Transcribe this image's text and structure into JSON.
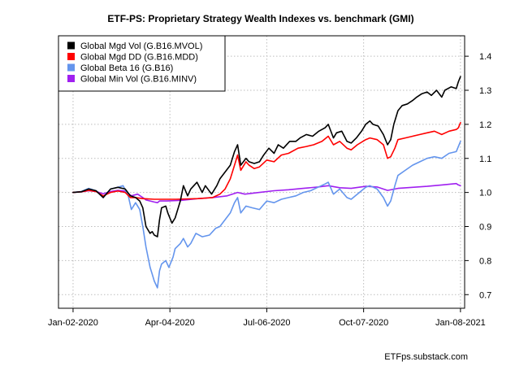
{
  "chart_data": {
    "type": "line",
    "title": "ETF-PS: Proprietary Strategy Wealth Indexes vs. benchmark (GMI)",
    "xlabel": "",
    "ylabel": "",
    "x_tick_labels": [
      "Jan-02-2020",
      "Apr-04-2020",
      "Jul-06-2020",
      "Oct-07-2020",
      "Jan-08-2021"
    ],
    "x_ticks": [
      "2020-01-02",
      "2020-04-04",
      "2020-07-06",
      "2020-10-07",
      "2021-01-08"
    ],
    "xlim": [
      "2019-12-19",
      "2021-01-12"
    ],
    "ylim": [
      0.66,
      1.46
    ],
    "y_ticks": [
      0.7,
      0.8,
      0.9,
      1.0,
      1.1,
      1.2,
      1.3,
      1.4
    ],
    "y_tick_labels": [
      "0.7",
      "0.8",
      "0.9",
      "1.0",
      "1.1",
      "1.2",
      "1.3",
      "1.4"
    ],
    "y_axis_side": "right",
    "grid": true,
    "legend_position": "top-left",
    "source_note": "ETFps.substack.com",
    "series": [
      {
        "name": "Global Mgd Vol (G.B16.MVOL)",
        "color": "#000000",
        "points": [
          [
            "2020-01-02",
            1.0
          ],
          [
            "2020-01-10",
            1.002
          ],
          [
            "2020-01-17",
            1.01
          ],
          [
            "2020-01-24",
            1.005
          ],
          [
            "2020-01-31",
            0.985
          ],
          [
            "2020-02-07",
            1.01
          ],
          [
            "2020-02-14",
            1.015
          ],
          [
            "2020-02-21",
            1.01
          ],
          [
            "2020-02-26",
            0.99
          ],
          [
            "2020-03-02",
            0.985
          ],
          [
            "2020-03-06",
            0.975
          ],
          [
            "2020-03-09",
            0.955
          ],
          [
            "2020-03-12",
            0.9
          ],
          [
            "2020-03-16",
            0.88
          ],
          [
            "2020-03-18",
            0.885
          ],
          [
            "2020-03-20",
            0.875
          ],
          [
            "2020-03-23",
            0.87
          ],
          [
            "2020-03-25",
            0.92
          ],
          [
            "2020-03-27",
            0.955
          ],
          [
            "2020-03-31",
            0.96
          ],
          [
            "2020-04-02",
            0.94
          ],
          [
            "2020-04-06",
            0.91
          ],
          [
            "2020-04-09",
            0.925
          ],
          [
            "2020-04-14",
            0.975
          ],
          [
            "2020-04-17",
            1.02
          ],
          [
            "2020-04-21",
            0.99
          ],
          [
            "2020-04-24",
            1.01
          ],
          [
            "2020-04-30",
            1.03
          ],
          [
            "2020-05-05",
            1.0
          ],
          [
            "2020-05-08",
            1.02
          ],
          [
            "2020-05-14",
            0.995
          ],
          [
            "2020-05-19",
            1.02
          ],
          [
            "2020-05-22",
            1.04
          ],
          [
            "2020-05-27",
            1.06
          ],
          [
            "2020-06-01",
            1.08
          ],
          [
            "2020-06-05",
            1.12
          ],
          [
            "2020-06-08",
            1.14
          ],
          [
            "2020-06-11",
            1.08
          ],
          [
            "2020-06-16",
            1.1
          ],
          [
            "2020-06-19",
            1.09
          ],
          [
            "2020-06-24",
            1.085
          ],
          [
            "2020-06-29",
            1.09
          ],
          [
            "2020-07-03",
            1.11
          ],
          [
            "2020-07-08",
            1.13
          ],
          [
            "2020-07-13",
            1.115
          ],
          [
            "2020-07-17",
            1.14
          ],
          [
            "2020-07-22",
            1.13
          ],
          [
            "2020-07-28",
            1.15
          ],
          [
            "2020-08-03",
            1.15
          ],
          [
            "2020-08-07",
            1.16
          ],
          [
            "2020-08-13",
            1.17
          ],
          [
            "2020-08-19",
            1.165
          ],
          [
            "2020-08-25",
            1.18
          ],
          [
            "2020-08-31",
            1.19
          ],
          [
            "2020-09-03",
            1.2
          ],
          [
            "2020-09-08",
            1.16
          ],
          [
            "2020-09-11",
            1.175
          ],
          [
            "2020-09-16",
            1.18
          ],
          [
            "2020-09-21",
            1.15
          ],
          [
            "2020-09-25",
            1.145
          ],
          [
            "2020-09-30",
            1.16
          ],
          [
            "2020-10-05",
            1.18
          ],
          [
            "2020-10-09",
            1.2
          ],
          [
            "2020-10-13",
            1.21
          ],
          [
            "2020-10-16",
            1.2
          ],
          [
            "2020-10-21",
            1.195
          ],
          [
            "2020-10-26",
            1.17
          ],
          [
            "2020-10-30",
            1.14
          ],
          [
            "2020-11-02",
            1.155
          ],
          [
            "2020-11-05",
            1.2
          ],
          [
            "2020-11-09",
            1.24
          ],
          [
            "2020-11-13",
            1.255
          ],
          [
            "2020-11-18",
            1.26
          ],
          [
            "2020-11-23",
            1.27
          ],
          [
            "2020-11-27",
            1.28
          ],
          [
            "2020-12-02",
            1.29
          ],
          [
            "2020-12-07",
            1.295
          ],
          [
            "2020-12-11",
            1.285
          ],
          [
            "2020-12-16",
            1.3
          ],
          [
            "2020-12-21",
            1.28
          ],
          [
            "2020-12-24",
            1.3
          ],
          [
            "2020-12-30",
            1.31
          ],
          [
            "2021-01-04",
            1.305
          ],
          [
            "2021-01-06",
            1.325
          ],
          [
            "2021-01-08",
            1.34
          ]
        ]
      },
      {
        "name": "Global Mgd DD (G.B16.MDD)",
        "color": "#ff0000",
        "points": [
          [
            "2020-01-02",
            1.0
          ],
          [
            "2020-01-10",
            1.002
          ],
          [
            "2020-01-17",
            1.006
          ],
          [
            "2020-01-24",
            1.003
          ],
          [
            "2020-01-31",
            0.99
          ],
          [
            "2020-02-07",
            1.0
          ],
          [
            "2020-02-14",
            1.004
          ],
          [
            "2020-02-21",
            1.0
          ],
          [
            "2020-02-26",
            0.985
          ],
          [
            "2020-03-02",
            0.985
          ],
          [
            "2020-03-09",
            0.982
          ],
          [
            "2020-03-20",
            0.98
          ],
          [
            "2020-04-10",
            0.98
          ],
          [
            "2020-05-01",
            0.982
          ],
          [
            "2020-05-15",
            0.985
          ],
          [
            "2020-05-22",
            0.995
          ],
          [
            "2020-05-27",
            1.01
          ],
          [
            "2020-06-01",
            1.04
          ],
          [
            "2020-06-05",
            1.08
          ],
          [
            "2020-06-08",
            1.11
          ],
          [
            "2020-06-11",
            1.065
          ],
          [
            "2020-06-16",
            1.09
          ],
          [
            "2020-06-19",
            1.08
          ],
          [
            "2020-06-24",
            1.07
          ],
          [
            "2020-06-29",
            1.075
          ],
          [
            "2020-07-06",
            1.095
          ],
          [
            "2020-07-13",
            1.09
          ],
          [
            "2020-07-20",
            1.11
          ],
          [
            "2020-07-27",
            1.115
          ],
          [
            "2020-08-05",
            1.13
          ],
          [
            "2020-08-13",
            1.135
          ],
          [
            "2020-08-20",
            1.14
          ],
          [
            "2020-08-28",
            1.15
          ],
          [
            "2020-09-03",
            1.165
          ],
          [
            "2020-09-08",
            1.14
          ],
          [
            "2020-09-14",
            1.15
          ],
          [
            "2020-09-21",
            1.13
          ],
          [
            "2020-09-25",
            1.125
          ],
          [
            "2020-10-01",
            1.14
          ],
          [
            "2020-10-09",
            1.155
          ],
          [
            "2020-10-13",
            1.16
          ],
          [
            "2020-10-20",
            1.155
          ],
          [
            "2020-10-26",
            1.14
          ],
          [
            "2020-10-30",
            1.1
          ],
          [
            "2020-11-02",
            1.105
          ],
          [
            "2020-11-06",
            1.13
          ],
          [
            "2020-11-09",
            1.155
          ],
          [
            "2020-11-16",
            1.16
          ],
          [
            "2020-11-23",
            1.165
          ],
          [
            "2020-11-30",
            1.17
          ],
          [
            "2020-12-07",
            1.175
          ],
          [
            "2020-12-14",
            1.18
          ],
          [
            "2020-12-21",
            1.17
          ],
          [
            "2020-12-28",
            1.18
          ],
          [
            "2021-01-04",
            1.185
          ],
          [
            "2021-01-06",
            1.19
          ],
          [
            "2021-01-08",
            1.205
          ]
        ]
      },
      {
        "name": "Global Beta 16 (G.B16)",
        "color": "#6495ed",
        "points": [
          [
            "2020-01-02",
            1.0
          ],
          [
            "2020-01-10",
            1.003
          ],
          [
            "2020-01-17",
            1.012
          ],
          [
            "2020-01-24",
            1.005
          ],
          [
            "2020-01-31",
            0.985
          ],
          [
            "2020-02-07",
            1.01
          ],
          [
            "2020-02-14",
            1.015
          ],
          [
            "2020-02-19",
            1.02
          ],
          [
            "2020-02-24",
            0.99
          ],
          [
            "2020-02-27",
            0.95
          ],
          [
            "2020-03-02",
            0.97
          ],
          [
            "2020-03-06",
            0.95
          ],
          [
            "2020-03-09",
            0.9
          ],
          [
            "2020-03-12",
            0.84
          ],
          [
            "2020-03-16",
            0.78
          ],
          [
            "2020-03-18",
            0.76
          ],
          [
            "2020-03-20",
            0.74
          ],
          [
            "2020-03-23",
            0.72
          ],
          [
            "2020-03-25",
            0.77
          ],
          [
            "2020-03-27",
            0.79
          ],
          [
            "2020-03-31",
            0.8
          ],
          [
            "2020-04-03",
            0.78
          ],
          [
            "2020-04-07",
            0.81
          ],
          [
            "2020-04-09",
            0.835
          ],
          [
            "2020-04-14",
            0.85
          ],
          [
            "2020-04-17",
            0.865
          ],
          [
            "2020-04-21",
            0.84
          ],
          [
            "2020-04-24",
            0.85
          ],
          [
            "2020-04-29",
            0.88
          ],
          [
            "2020-05-05",
            0.87
          ],
          [
            "2020-05-12",
            0.875
          ],
          [
            "2020-05-18",
            0.895
          ],
          [
            "2020-05-22",
            0.9
          ],
          [
            "2020-05-27",
            0.92
          ],
          [
            "2020-06-01",
            0.94
          ],
          [
            "2020-06-05",
            0.97
          ],
          [
            "2020-06-08",
            0.985
          ],
          [
            "2020-06-11",
            0.94
          ],
          [
            "2020-06-16",
            0.96
          ],
          [
            "2020-06-22",
            0.955
          ],
          [
            "2020-06-29",
            0.95
          ],
          [
            "2020-07-06",
            0.975
          ],
          [
            "2020-07-13",
            0.97
          ],
          [
            "2020-07-20",
            0.98
          ],
          [
            "2020-07-27",
            0.985
          ],
          [
            "2020-08-03",
            0.99
          ],
          [
            "2020-08-10",
            1.0
          ],
          [
            "2020-08-17",
            1.005
          ],
          [
            "2020-08-24",
            1.015
          ],
          [
            "2020-08-31",
            1.025
          ],
          [
            "2020-09-03",
            1.03
          ],
          [
            "2020-09-08",
            0.995
          ],
          [
            "2020-09-14",
            1.01
          ],
          [
            "2020-09-21",
            0.985
          ],
          [
            "2020-09-25",
            0.98
          ],
          [
            "2020-10-01",
            0.995
          ],
          [
            "2020-10-09",
            1.015
          ],
          [
            "2020-10-13",
            1.02
          ],
          [
            "2020-10-20",
            1.01
          ],
          [
            "2020-10-26",
            0.985
          ],
          [
            "2020-10-30",
            0.96
          ],
          [
            "2020-11-02",
            0.975
          ],
          [
            "2020-11-06",
            1.02
          ],
          [
            "2020-11-09",
            1.05
          ],
          [
            "2020-11-16",
            1.065
          ],
          [
            "2020-11-23",
            1.08
          ],
          [
            "2020-11-30",
            1.09
          ],
          [
            "2020-12-07",
            1.1
          ],
          [
            "2020-12-14",
            1.105
          ],
          [
            "2020-12-21",
            1.1
          ],
          [
            "2020-12-28",
            1.115
          ],
          [
            "2021-01-04",
            1.12
          ],
          [
            "2021-01-06",
            1.135
          ],
          [
            "2021-01-08",
            1.15
          ]
        ]
      },
      {
        "name": "Global Min Vol (G.B16.MINV)",
        "color": "#a020f0",
        "points": [
          [
            "2020-01-02",
            1.0
          ],
          [
            "2020-01-10",
            1.002
          ],
          [
            "2020-01-17",
            1.005
          ],
          [
            "2020-01-24",
            1.003
          ],
          [
            "2020-01-31",
            0.996
          ],
          [
            "2020-02-07",
            1.003
          ],
          [
            "2020-02-14",
            1.006
          ],
          [
            "2020-02-21",
            1.004
          ],
          [
            "2020-02-27",
            0.99
          ],
          [
            "2020-03-04",
            0.995
          ],
          [
            "2020-03-09",
            0.985
          ],
          [
            "2020-03-12",
            0.978
          ],
          [
            "2020-03-16",
            0.975
          ],
          [
            "2020-03-20",
            0.972
          ],
          [
            "2020-03-23",
            0.97
          ],
          [
            "2020-03-25",
            0.975
          ],
          [
            "2020-04-01",
            0.975
          ],
          [
            "2020-04-15",
            0.977
          ],
          [
            "2020-05-01",
            0.982
          ],
          [
            "2020-05-15",
            0.985
          ],
          [
            "2020-05-29",
            0.99
          ],
          [
            "2020-06-08",
            1.0
          ],
          [
            "2020-06-15",
            0.995
          ],
          [
            "2020-06-29",
            1.0
          ],
          [
            "2020-07-13",
            1.005
          ],
          [
            "2020-07-27",
            1.008
          ],
          [
            "2020-08-10",
            1.012
          ],
          [
            "2020-08-24",
            1.016
          ],
          [
            "2020-09-03",
            1.02
          ],
          [
            "2020-09-14",
            1.014
          ],
          [
            "2020-09-25",
            1.012
          ],
          [
            "2020-10-09",
            1.018
          ],
          [
            "2020-10-20",
            1.016
          ],
          [
            "2020-10-30",
            1.006
          ],
          [
            "2020-11-09",
            1.012
          ],
          [
            "2020-11-23",
            1.015
          ],
          [
            "2020-12-07",
            1.018
          ],
          [
            "2020-12-21",
            1.022
          ],
          [
            "2021-01-04",
            1.026
          ],
          [
            "2021-01-06",
            1.022
          ],
          [
            "2021-01-08",
            1.02
          ]
        ]
      }
    ]
  }
}
